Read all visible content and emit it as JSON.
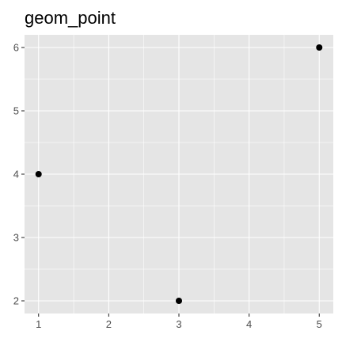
{
  "chart_data": {
    "type": "scatter",
    "title": "geom_point",
    "xlabel": "",
    "ylabel": "",
    "x": [
      1,
      3,
      5
    ],
    "y": [
      4,
      2,
      6
    ],
    "xlim": [
      0.8,
      5.2
    ],
    "ylim": [
      1.8,
      6.2
    ],
    "x_ticks": [
      1,
      2,
      3,
      4,
      5
    ],
    "y_ticks": [
      2,
      3,
      4,
      5,
      6
    ],
    "x_tick_labels": [
      "1",
      "2",
      "3",
      "4",
      "5"
    ],
    "y_tick_labels": [
      "2",
      "3",
      "4",
      "5",
      "6"
    ],
    "grid": true,
    "legend": "none",
    "colors": {
      "panel_background": "#e5e5e5",
      "grid_line": "#ffffff",
      "point": "#000000",
      "tick_mark": "#333333",
      "tick_label": "#4d4d4d"
    }
  }
}
